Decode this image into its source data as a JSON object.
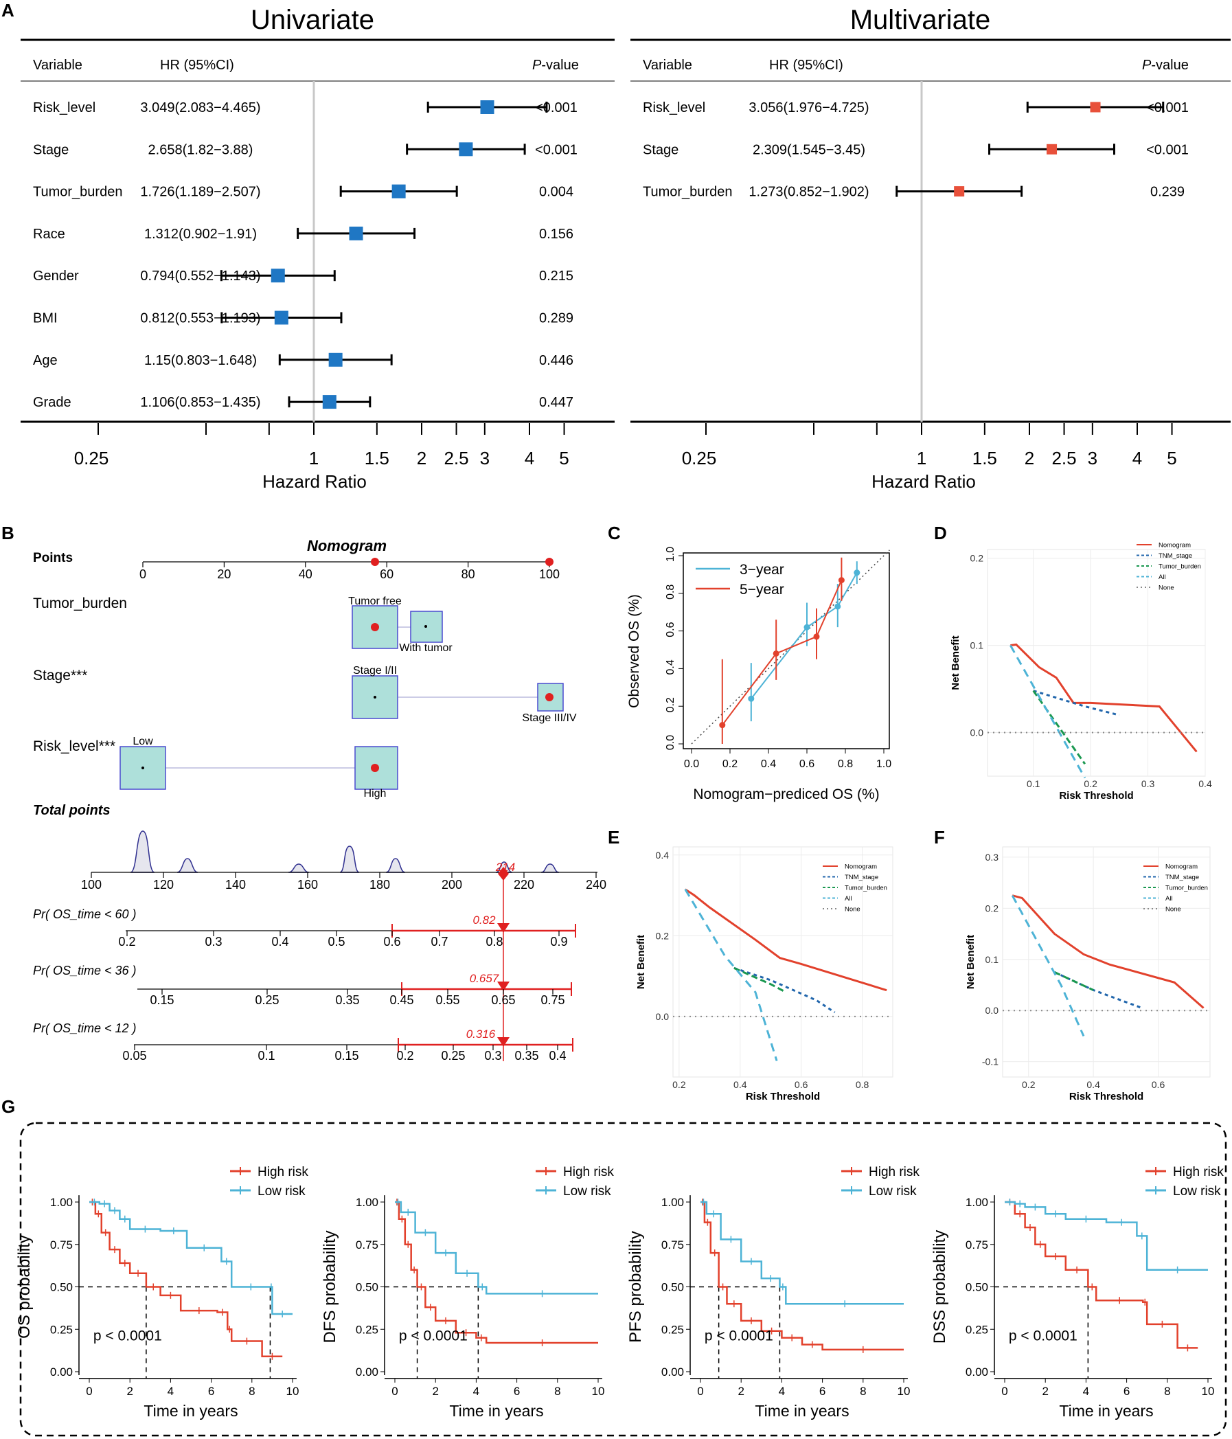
{
  "panel_labels": {
    "a": "A",
    "b": "B",
    "c": "C",
    "d": "D",
    "e": "E",
    "f": "F",
    "g": "G"
  },
  "forest": {
    "hr_axis_label": "Hazard Ratio",
    "ticks": [
      0.25,
      0.5,
      0.75,
      1,
      1.5,
      2,
      2.5,
      3,
      4,
      5
    ],
    "tick_labels": [
      "0.25",
      "1",
      "1.5",
      "2",
      "2.5",
      "3",
      "4",
      "5"
    ],
    "col_variable": "Variable",
    "col_hr": "HR (95%CI)",
    "col_p_italic": "P",
    "col_p_rest": "-value",
    "univariate": {
      "title": "Univariate",
      "color": "#1f77c4",
      "rows": [
        {
          "var": "Risk_level",
          "hr_text": "3.049(2.083−4.465)",
          "hr": 3.049,
          "lo": 2.083,
          "hi": 4.465,
          "p": "<0.001"
        },
        {
          "var": "Stage",
          "hr_text": "2.658(1.82−3.88)",
          "hr": 2.658,
          "lo": 1.82,
          "hi": 3.88,
          "p": "<0.001"
        },
        {
          "var": "Tumor_burden",
          "hr_text": "1.726(1.189−2.507)",
          "hr": 1.726,
          "lo": 1.189,
          "hi": 2.507,
          "p": "0.004"
        },
        {
          "var": "Race",
          "hr_text": "1.312(0.902−1.91)",
          "hr": 1.312,
          "lo": 0.902,
          "hi": 1.91,
          "p": "0.156"
        },
        {
          "var": "Gender",
          "hr_text": "0.794(0.552−1.143)",
          "hr": 0.794,
          "lo": 0.552,
          "hi": 1.143,
          "p": "0.215"
        },
        {
          "var": "BMI",
          "hr_text": "0.812(0.553−1.193)",
          "hr": 0.812,
          "lo": 0.553,
          "hi": 1.193,
          "p": "0.289"
        },
        {
          "var": "Age",
          "hr_text": "1.15(0.803−1.648)",
          "hr": 1.15,
          "lo": 0.803,
          "hi": 1.648,
          "p": "0.446"
        },
        {
          "var": "Grade",
          "hr_text": "1.106(0.853−1.435)",
          "hr": 1.106,
          "lo": 0.853,
          "hi": 1.435,
          "p": "0.447"
        }
      ]
    },
    "multivariate": {
      "title": "Multivariate",
      "color": "#e8503a",
      "rows": [
        {
          "var": "Risk_level",
          "hr_text": "3.056(1.976−4.725)",
          "hr": 3.056,
          "lo": 1.976,
          "hi": 4.725,
          "p": "<0.001"
        },
        {
          "var": "Stage",
          "hr_text": "2.309(1.545−3.45)",
          "hr": 2.309,
          "lo": 1.545,
          "hi": 3.45,
          "p": "<0.001"
        },
        {
          "var": "Tumor_burden",
          "hr_text": "1.273(0.852−1.902)",
          "hr": 1.273,
          "lo": 0.852,
          "hi": 1.902,
          "p": "0.239"
        }
      ]
    }
  },
  "nomogram": {
    "title": "Nomogram",
    "points_label": "Points",
    "points_ticks": [
      "0",
      "20",
      "40",
      "60",
      "80",
      "100"
    ],
    "tumor_label": "Tumor_burden",
    "tumor_free": "Tumor free",
    "with_tumor": "With tumor",
    "stage_label": "Stage***",
    "stage_12": "Stage I/II",
    "stage_34": "Stage III/IV",
    "risk_label": "Risk_level***",
    "risk_low": "Low",
    "risk_high": "High",
    "total_label": "Total points",
    "total_ticks": [
      "100",
      "120",
      "140",
      "160",
      "180",
      "200",
      "220",
      "240"
    ],
    "total_value": "214",
    "pr60_label": "Pr( OS_time < 60 )",
    "pr60_ticks": [
      "0.2",
      "0.3",
      "0.4",
      "0.5",
      "0.6",
      "0.7",
      "0.8",
      "0.9"
    ],
    "pr60_value": "0.82",
    "pr36_label": "Pr( OS_time < 36 )",
    "pr36_ticks": [
      "0.15",
      "0.25",
      "0.35",
      "0.45",
      "0.55",
      "0.65",
      "0.75"
    ],
    "pr36_value": "0.657",
    "pr12_label": "Pr( OS_time < 12 )",
    "pr12_ticks": [
      "0.05",
      "0.1",
      "0.15",
      "0.2",
      "0.25",
      "0.3",
      "0.35",
      "0.4"
    ],
    "pr12_value": "0.316"
  },
  "chart_data": [
    {
      "type": "line",
      "panel": "C",
      "xlabel": "Nomogram−prediced OS (%)",
      "ylabel": "Observed OS (%)",
      "xlim": [
        0,
        1
      ],
      "ylim": [
        0,
        1
      ],
      "ticks": [
        "0.0",
        "0.2",
        "0.4",
        "0.6",
        "0.8",
        "1.0"
      ],
      "series": [
        {
          "name": "3−year",
          "color": "#4db3d6",
          "x": [
            0.31,
            0.6,
            0.76,
            0.86
          ],
          "y": [
            0.24,
            0.62,
            0.73,
            0.91
          ],
          "lo": [
            0.12,
            0.52,
            0.62,
            0.85
          ],
          "hi": [
            0.43,
            0.75,
            0.85,
            0.97
          ]
        },
        {
          "name": "5−year",
          "color": "#e2412c",
          "x": [
            0.16,
            0.44,
            0.65,
            0.78
          ],
          "y": [
            0.1,
            0.48,
            0.57,
            0.87
          ],
          "lo": [
            0.0,
            0.34,
            0.45,
            0.76
          ],
          "hi": [
            0.45,
            0.66,
            0.72,
            0.99
          ]
        }
      ]
    },
    {
      "type": "line",
      "panel": "D",
      "xlabel": "Risk Threshold",
      "ylabel": "Net Benefit",
      "xlim": [
        0.02,
        0.4
      ],
      "ylim": [
        -0.05,
        0.21
      ],
      "xticks": [
        "0.1",
        "0.2",
        "0.3",
        "0.4"
      ],
      "yticks": [
        "0.0",
        "0.1",
        "0.2"
      ],
      "series": [
        {
          "name": "Nomogram",
          "color": "#e2412c",
          "x": [
            0.06,
            0.07,
            0.11,
            0.14,
            0.17,
            0.2,
            0.32,
            0.385
          ],
          "y": [
            0.1,
            0.101,
            0.075,
            0.063,
            0.034,
            0.034,
            0.03,
            -0.022
          ]
        },
        {
          "name": "TNM_stage",
          "color": "#2166ac",
          "x": [
            0.1,
            0.19,
            0.25
          ],
          "y": [
            0.048,
            0.03,
            0.02
          ]
        },
        {
          "name": "Tumor_burden",
          "color": "#1a9850",
          "x": [
            0.1,
            0.19
          ],
          "y": [
            0.048,
            -0.036
          ]
        },
        {
          "name": "All",
          "color": "#4db3d6",
          "x": [
            0.06,
            0.19
          ],
          "y": [
            0.1,
            -0.052
          ]
        },
        {
          "name": "None",
          "color": "#888888",
          "x": [
            0.02,
            0.4
          ],
          "y": [
            0,
            0
          ]
        }
      ]
    },
    {
      "type": "line",
      "panel": "E",
      "xlabel": "Risk Threshold",
      "ylabel": "Net Benefit",
      "xlim": [
        0.18,
        0.9
      ],
      "ylim": [
        -0.15,
        0.42
      ],
      "xticks": [
        "0.2",
        "0.4",
        "0.6",
        "0.8"
      ],
      "yticks": [
        "0.0",
        "0.2",
        "0.4"
      ],
      "series": [
        {
          "name": "Nomogram",
          "color": "#e2412c",
          "x": [
            0.22,
            0.25,
            0.3,
            0.45,
            0.53,
            0.6,
            0.88
          ],
          "y": [
            0.315,
            0.3,
            0.27,
            0.19,
            0.145,
            0.13,
            0.065
          ]
        },
        {
          "name": "TNM_stage",
          "color": "#2166ac",
          "x": [
            0.38,
            0.5,
            0.65,
            0.71
          ],
          "y": [
            0.12,
            0.09,
            0.04,
            0.01
          ]
        },
        {
          "name": "Tumor_burden",
          "color": "#1a9850",
          "x": [
            0.38,
            0.5,
            0.55
          ],
          "y": [
            0.12,
            0.08,
            0.06
          ]
        },
        {
          "name": "All",
          "color": "#4db3d6",
          "x": [
            0.22,
            0.35,
            0.45,
            0.52
          ],
          "y": [
            0.315,
            0.15,
            0.06,
            -0.11
          ]
        },
        {
          "name": "None",
          "color": "#888888",
          "x": [
            0.18,
            0.9
          ],
          "y": [
            0,
            0
          ]
        }
      ]
    },
    {
      "type": "line",
      "panel": "F",
      "xlabel": "Risk Threshold",
      "ylabel": "Net Benefit",
      "xlim": [
        0.12,
        0.76
      ],
      "ylim": [
        -0.13,
        0.32
      ],
      "xticks": [
        "0.2",
        "0.4",
        "0.6"
      ],
      "yticks": [
        "-0.1",
        "0.0",
        "0.1",
        "0.2",
        "0.3"
      ],
      "series": [
        {
          "name": "Nomogram",
          "color": "#e2412c",
          "x": [
            0.15,
            0.18,
            0.28,
            0.37,
            0.45,
            0.65,
            0.74
          ],
          "y": [
            0.225,
            0.22,
            0.15,
            0.11,
            0.09,
            0.055,
            0.005
          ]
        },
        {
          "name": "TNM_stage",
          "color": "#2166ac",
          "x": [
            0.28,
            0.4,
            0.55
          ],
          "y": [
            0.075,
            0.04,
            0.005
          ]
        },
        {
          "name": "Tumor_burden",
          "color": "#1a9850",
          "x": [
            0.28,
            0.4
          ],
          "y": [
            0.075,
            0.04
          ]
        },
        {
          "name": "All",
          "color": "#4db3d6",
          "x": [
            0.15,
            0.3,
            0.37
          ],
          "y": [
            0.225,
            0.05,
            -0.05
          ]
        },
        {
          "name": "None",
          "color": "#888888",
          "x": [
            0.12,
            0.76
          ],
          "y": [
            0,
            0
          ]
        }
      ]
    },
    {
      "type": "line",
      "panel": "G1",
      "ylabel": "OS probability",
      "xlabel": "Time in years",
      "pvalue": "p < 0.0001",
      "xlim": [
        0,
        10
      ],
      "ylim": [
        0,
        1
      ],
      "xticks": [
        "0",
        "2",
        "4",
        "6",
        "8",
        "10"
      ],
      "yticks": [
        "0.00",
        "0.25",
        "0.50",
        "0.75",
        "1.00"
      ],
      "median_high": 2.8,
      "median_low": 8.9,
      "series": [
        {
          "name": "High risk",
          "color": "#e2412c",
          "x": [
            0,
            0.3,
            0.6,
            1,
            1.5,
            2,
            2.8,
            3.5,
            4.5,
            6.3,
            6.8,
            7,
            8.5,
            9.5
          ],
          "y": [
            1,
            0.93,
            0.82,
            0.72,
            0.64,
            0.58,
            0.5,
            0.45,
            0.36,
            0.35,
            0.25,
            0.18,
            0.09,
            0.09
          ]
        },
        {
          "name": "Low risk",
          "color": "#4db3d6",
          "x": [
            0,
            0.5,
            1,
            1.5,
            2,
            3.5,
            4.8,
            6.5,
            7,
            8.9,
            9,
            10
          ],
          "y": [
            1,
            0.99,
            0.95,
            0.9,
            0.84,
            0.83,
            0.73,
            0.65,
            0.5,
            0.5,
            0.34,
            0.34
          ]
        }
      ]
    },
    {
      "type": "line",
      "panel": "G2",
      "ylabel": "DFS probability",
      "xlabel": "Time in years",
      "pvalue": "p < 0.0001",
      "xlim": [
        0,
        10
      ],
      "ylim": [
        0,
        1
      ],
      "xticks": [
        "0",
        "2",
        "4",
        "6",
        "8",
        "10"
      ],
      "yticks": [
        "0.00",
        "0.25",
        "0.50",
        "0.75",
        "1.00"
      ],
      "median_high": 1.1,
      "median_low": 4.1,
      "series": [
        {
          "name": "High risk",
          "color": "#e2412c",
          "x": [
            0,
            0.2,
            0.5,
            0.8,
            1.1,
            1.5,
            2,
            3,
            4,
            4.5,
            10
          ],
          "y": [
            1,
            0.9,
            0.75,
            0.6,
            0.5,
            0.38,
            0.3,
            0.23,
            0.2,
            0.17,
            0.17
          ]
        },
        {
          "name": "Low risk",
          "color": "#4db3d6",
          "x": [
            0,
            0.3,
            1,
            2,
            3,
            4.1,
            4.5,
            10
          ],
          "y": [
            1,
            0.94,
            0.82,
            0.7,
            0.58,
            0.5,
            0.46,
            0.46
          ]
        }
      ]
    },
    {
      "type": "line",
      "panel": "G3",
      "ylabel": "PFS probability",
      "xlabel": "Time in years",
      "pvalue": "p < 0.0001",
      "xlim": [
        0,
        10
      ],
      "ylim": [
        0,
        1
      ],
      "xticks": [
        "0",
        "2",
        "4",
        "6",
        "8",
        "10"
      ],
      "yticks": [
        "0.00",
        "0.25",
        "0.50",
        "0.75",
        "1.00"
      ],
      "median_high": 0.9,
      "median_low": 3.9,
      "series": [
        {
          "name": "High risk",
          "color": "#e2412c",
          "x": [
            0,
            0.2,
            0.5,
            0.9,
            1.3,
            2,
            3,
            4,
            5,
            6,
            10
          ],
          "y": [
            1,
            0.88,
            0.7,
            0.5,
            0.4,
            0.3,
            0.24,
            0.2,
            0.16,
            0.13,
            0.13
          ]
        },
        {
          "name": "Low risk",
          "color": "#4db3d6",
          "x": [
            0,
            0.3,
            1,
            2,
            3,
            3.9,
            4.2,
            10
          ],
          "y": [
            1,
            0.93,
            0.78,
            0.65,
            0.55,
            0.5,
            0.4,
            0.4
          ]
        }
      ]
    },
    {
      "type": "line",
      "panel": "G4",
      "ylabel": "DSS probability",
      "xlabel": "Time in years",
      "pvalue": "p < 0.0001",
      "xlim": [
        0,
        10
      ],
      "ylim": [
        0,
        1
      ],
      "xticks": [
        "0",
        "2",
        "4",
        "6",
        "8",
        "10"
      ],
      "yticks": [
        "0.00",
        "0.25",
        "0.50",
        "0.75",
        "1.00"
      ],
      "median_high": 4.1,
      "series": [
        {
          "name": "High risk",
          "color": "#e2412c",
          "x": [
            0,
            0.5,
            1,
            1.5,
            2,
            3,
            4.1,
            4.5,
            6.8,
            7,
            8.5,
            9.5
          ],
          "y": [
            1,
            0.93,
            0.85,
            0.75,
            0.68,
            0.6,
            0.5,
            0.42,
            0.41,
            0.28,
            0.14,
            0.14
          ]
        },
        {
          "name": "Low risk",
          "color": "#4db3d6",
          "x": [
            0,
            0.5,
            1,
            2,
            3,
            5,
            6.5,
            7,
            10
          ],
          "y": [
            1,
            0.99,
            0.97,
            0.93,
            0.9,
            0.88,
            0.8,
            0.6,
            0.6
          ]
        }
      ]
    }
  ]
}
